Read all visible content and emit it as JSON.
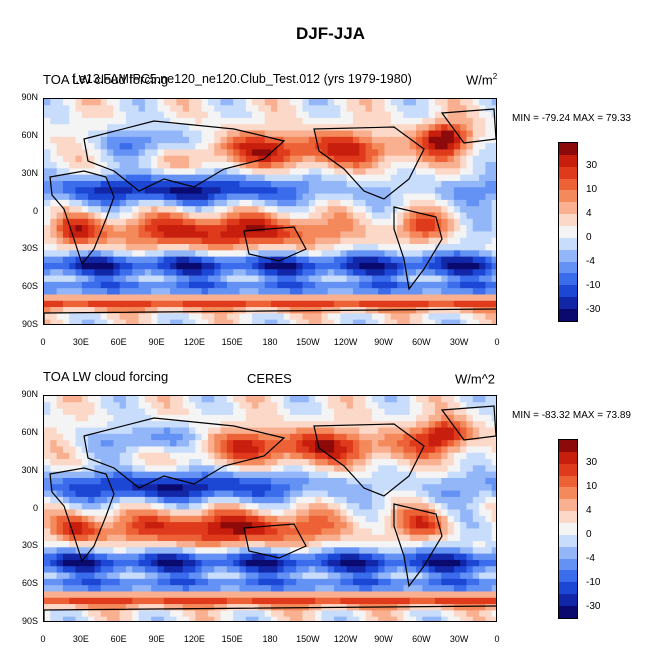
{
  "title": "DJF-JJA",
  "palette": [
    "#0a0a6e",
    "#1226a8",
    "#1c46d4",
    "#3a6cec",
    "#6492f4",
    "#93b6f8",
    "#c8dcfc",
    "#f4f4f4",
    "#fcd8c8",
    "#f8b090",
    "#f48a5c",
    "#ec6236",
    "#e03a1c",
    "#c81e0e",
    "#8c0a0a"
  ],
  "colorbar_labels": [
    "30",
    "10",
    "4",
    "0",
    "-4",
    "-10",
    "-30"
  ],
  "lat_ticks": [
    "90N",
    "60N",
    "30N",
    "0",
    "30S",
    "60S",
    "90S"
  ],
  "lon_ticks": [
    "0",
    "30E",
    "60E",
    "90E",
    "120E",
    "150E",
    "180",
    "150W",
    "120W",
    "90W",
    "60W",
    "30W",
    "0"
  ],
  "panels": [
    {
      "left_title": "TOA LW cloud forcing",
      "center_title": "f.e13.FAMIPC5.ne120_ne120.Club_Test.012 (yrs 1979-1980)",
      "units": "W/m",
      "units_sup": "2",
      "minmax": "MIN = -79.24 MAX =  79.33"
    },
    {
      "left_title": "TOA LW cloud forcing",
      "center_title": "CERES",
      "units": "W/m^2",
      "units_sup": "",
      "minmax": "MIN = -83.32 MAX =  73.89"
    }
  ]
}
